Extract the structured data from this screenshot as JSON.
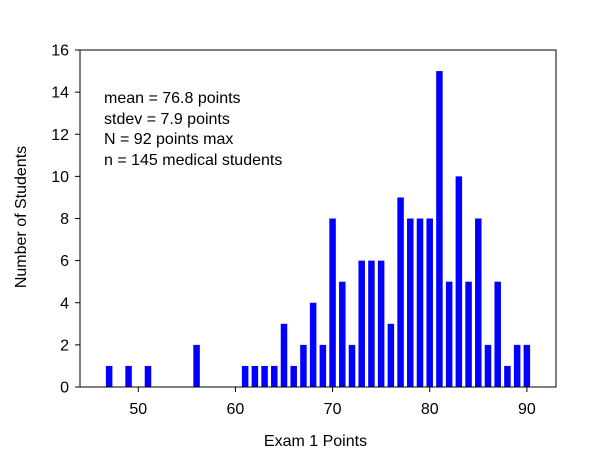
{
  "chart_data": {
    "type": "bar",
    "xlabel": "Exam 1 Points",
    "ylabel": "Number of Students",
    "xlim": [
      44,
      93
    ],
    "ylim": [
      0,
      16
    ],
    "xticks": [
      50,
      60,
      70,
      80,
      90
    ],
    "yticks": [
      0,
      2,
      4,
      6,
      8,
      10,
      12,
      14,
      16
    ],
    "bar_color": "#0000ff",
    "grid": false,
    "annotations": [
      "mean = 76.8 points",
      "stdev = 7.9 points",
      "N = 92 points max",
      "n = 145 medical students"
    ],
    "x": [
      47,
      49,
      51,
      56,
      61,
      62,
      63,
      64,
      65,
      66,
      67,
      68,
      69,
      70,
      71,
      72,
      73,
      74,
      75,
      76,
      77,
      78,
      79,
      80,
      81,
      82,
      83,
      84,
      85,
      86,
      87,
      88,
      89,
      90
    ],
    "values": [
      1,
      1,
      1,
      2,
      1,
      1,
      1,
      1,
      3,
      1,
      2,
      4,
      2,
      8,
      5,
      2,
      6,
      6,
      6,
      3,
      9,
      8,
      8,
      8,
      15,
      5,
      10,
      5,
      8,
      2,
      5,
      1,
      2,
      2
    ]
  }
}
